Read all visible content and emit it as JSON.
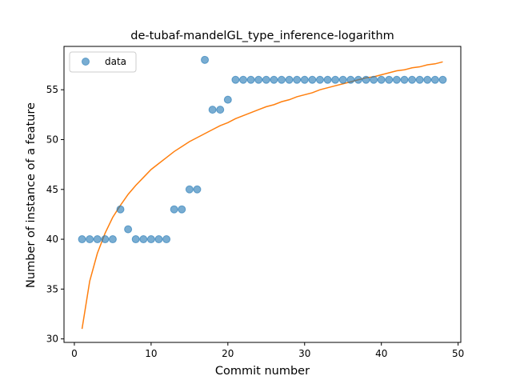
{
  "chart_data": {
    "type": "scatter",
    "title": "de-tubaf-mandelGL_type_inference-logarithm",
    "xlabel": "Commit number",
    "ylabel": "Number of instance of a feature",
    "xlim": [
      -1.35,
      50.35
    ],
    "ylim": [
      29.65,
      59.35
    ],
    "x_ticks": [
      0,
      10,
      20,
      30,
      40,
      50
    ],
    "y_ticks": [
      30,
      35,
      40,
      45,
      50,
      55
    ],
    "grid": false,
    "legend": {
      "entries": [
        "data"
      ],
      "placement": "top-left"
    },
    "series": [
      {
        "name": "data",
        "kind": "scatter",
        "color": "#1f77b4",
        "x": [
          1,
          2,
          3,
          4,
          5,
          6,
          7,
          8,
          9,
          10,
          11,
          12,
          13,
          14,
          15,
          16,
          17,
          18,
          19,
          20,
          21,
          22,
          23,
          24,
          25,
          26,
          27,
          28,
          29,
          30,
          31,
          32,
          33,
          34,
          35,
          36,
          37,
          38,
          39,
          40,
          41,
          42,
          43,
          44,
          45,
          46,
          47,
          48
        ],
        "y": [
          40,
          40,
          40,
          40,
          40,
          43,
          41,
          40,
          40,
          40,
          40,
          40,
          43,
          43,
          45,
          45,
          58,
          53,
          53,
          54,
          56,
          56,
          56,
          56,
          56,
          56,
          56,
          56,
          56,
          56,
          56,
          56,
          56,
          56,
          56,
          56,
          56,
          56,
          56,
          56,
          56,
          56,
          56,
          56,
          56,
          56,
          56,
          56
        ]
      },
      {
        "kind": "line",
        "color": "#ff7f0e",
        "x": [
          1,
          2,
          3,
          4,
          5,
          6,
          7,
          8,
          9,
          10,
          11,
          12,
          13,
          14,
          15,
          16,
          17,
          18,
          19,
          20,
          21,
          22,
          23,
          24,
          25,
          26,
          27,
          28,
          29,
          30,
          31,
          32,
          33,
          34,
          35,
          36,
          37,
          38,
          39,
          40,
          41,
          42,
          43,
          44,
          45,
          46,
          47,
          48
        ],
        "y": [
          31.0,
          35.8,
          38.6,
          40.6,
          42.2,
          43.4,
          44.5,
          45.4,
          46.2,
          47.0,
          47.6,
          48.2,
          48.8,
          49.3,
          49.8,
          50.2,
          50.6,
          51.0,
          51.4,
          51.7,
          52.1,
          52.4,
          52.7,
          53.0,
          53.3,
          53.5,
          53.8,
          54.0,
          54.3,
          54.5,
          54.7,
          55.0,
          55.2,
          55.4,
          55.6,
          55.8,
          56.0,
          56.2,
          56.3,
          56.5,
          56.7,
          56.9,
          57.0,
          57.2,
          57.3,
          57.5,
          57.6,
          57.8
        ]
      }
    ]
  }
}
